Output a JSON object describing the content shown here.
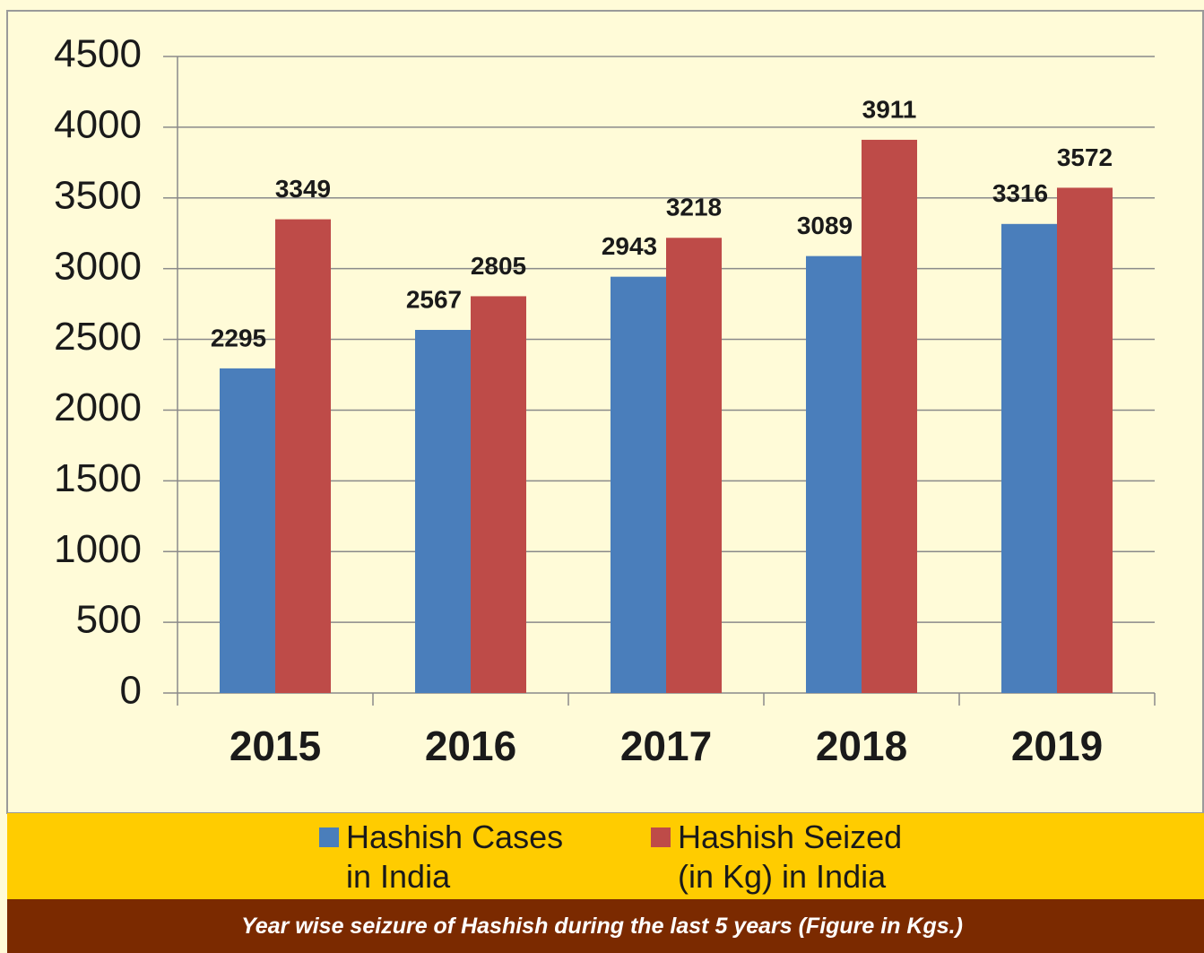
{
  "chart_data": {
    "type": "bar",
    "caption": "Year wise seizure of Hashish during the last 5 years (Figure in Kgs.)",
    "categories": [
      "2015",
      "2016",
      "2017",
      "2018",
      "2019"
    ],
    "series": [
      {
        "name": "Hashish Cases in India",
        "color": "#4a7ebb",
        "values": [
          2295,
          2567,
          2943,
          3089,
          3316
        ]
      },
      {
        "name": "Hashish Seized (in Kg) in India",
        "color": "#be4b48",
        "values": [
          3349,
          2805,
          3218,
          3911,
          3572
        ]
      }
    ],
    "ylim": [
      0,
      4500
    ],
    "yticks": [
      0,
      500,
      1000,
      1500,
      2000,
      2500,
      3000,
      3500,
      4000,
      4500
    ],
    "grid": true,
    "legend": "bottom"
  }
}
